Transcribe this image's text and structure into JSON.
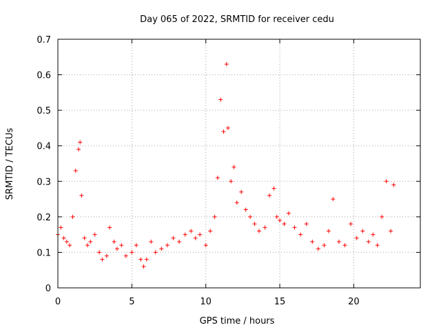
{
  "chart_data": {
    "type": "scatter",
    "title": "Day 065 of 2022, SRMTID for receiver cedu",
    "xlabel": "GPS time / hours",
    "ylabel": "SRMTID / TECUs",
    "xlim": [
      0,
      24.5
    ],
    "ylim": [
      0,
      0.7
    ],
    "xticks": [
      0,
      5,
      10,
      15,
      20
    ],
    "xtick_labels": [
      "0",
      "5",
      "10",
      "15",
      "20"
    ],
    "yticks": [
      0,
      0.1,
      0.2,
      0.3,
      0.4,
      0.5,
      0.6,
      0.7
    ],
    "ytick_labels": [
      "0",
      "0.1",
      "0.2",
      "0.3",
      "0.4",
      "0.5",
      "0.6",
      "0.7"
    ],
    "grid": true,
    "marker": "plus",
    "color": "#ff0000",
    "series": [
      {
        "name": "SRMTID",
        "x": [
          0.0,
          0.2,
          0.4,
          0.6,
          0.8,
          1.0,
          1.2,
          1.4,
          1.5,
          1.6,
          1.8,
          2.0,
          2.2,
          2.5,
          2.8,
          3.0,
          3.3,
          3.5,
          3.8,
          4.0,
          4.3,
          4.6,
          5.0,
          5.3,
          5.6,
          5.8,
          6.0,
          6.3,
          6.6,
          7.0,
          7.4,
          7.8,
          8.2,
          8.6,
          9.0,
          9.3,
          9.6,
          10.0,
          10.3,
          10.6,
          10.8,
          11.0,
          11.2,
          11.4,
          11.5,
          11.7,
          11.9,
          12.1,
          12.4,
          12.7,
          13.0,
          13.3,
          13.6,
          14.0,
          14.3,
          14.6,
          14.8,
          15.0,
          15.3,
          15.6,
          16.0,
          16.4,
          16.8,
          17.2,
          17.6,
          18.0,
          18.3,
          18.6,
          19.0,
          19.4,
          19.8,
          20.2,
          20.6,
          21.0,
          21.3,
          21.6,
          21.9,
          22.2,
          22.5,
          22.7
        ],
        "y": [
          0.15,
          0.17,
          0.14,
          0.13,
          0.12,
          0.2,
          0.33,
          0.39,
          0.41,
          0.26,
          0.14,
          0.12,
          0.13,
          0.15,
          0.1,
          0.08,
          0.09,
          0.17,
          0.13,
          0.11,
          0.12,
          0.09,
          0.1,
          0.12,
          0.08,
          0.06,
          0.08,
          0.13,
          0.1,
          0.11,
          0.12,
          0.14,
          0.13,
          0.15,
          0.16,
          0.14,
          0.15,
          0.12,
          0.16,
          0.2,
          0.31,
          0.53,
          0.44,
          0.63,
          0.45,
          0.3,
          0.34,
          0.24,
          0.27,
          0.22,
          0.2,
          0.18,
          0.16,
          0.17,
          0.26,
          0.28,
          0.2,
          0.19,
          0.18,
          0.21,
          0.17,
          0.15,
          0.18,
          0.13,
          0.11,
          0.12,
          0.16,
          0.25,
          0.13,
          0.12,
          0.18,
          0.14,
          0.16,
          0.13,
          0.15,
          0.12,
          0.2,
          0.3,
          0.16,
          0.29
        ]
      }
    ]
  }
}
